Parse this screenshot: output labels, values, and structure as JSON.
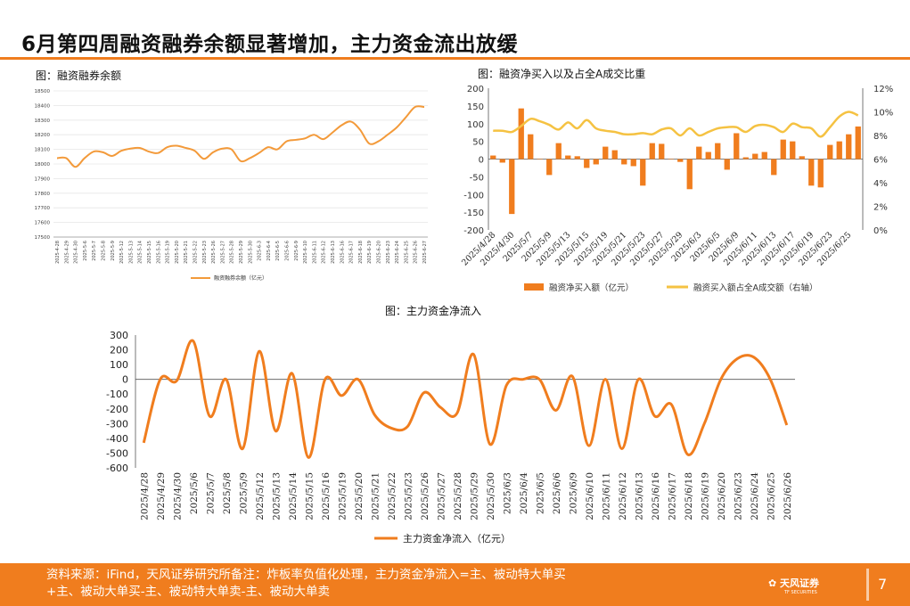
{
  "page": {
    "title": "6月第四周融资融券余额显著增加，主力资金流出放缓",
    "source_note": "资料来源：iFind，天风证券研究所备注：炸板率负值化处理，主力资金净流入=主、被动特大单买+主、被动大单买-主、被动特大单卖-主、被动大单卖",
    "brand": "天风证券",
    "brand_sub": "TF SECURITIES",
    "page_number": "7"
  },
  "chart_data": [
    {
      "id": "margin_balance",
      "caption": "图：融资融券余额",
      "type": "line",
      "x": [
        "2025-4-28",
        "2025-4-29",
        "2025-4-30",
        "2025-5-6",
        "2025-5-7",
        "2025-5-8",
        "2025-5-9",
        "2025-5-12",
        "2025-5-13",
        "2025-5-14",
        "2025-5-15",
        "2025-5-16",
        "2025-5-19",
        "2025-5-20",
        "2025-5-21",
        "2025-5-22",
        "2025-5-23",
        "2025-5-26",
        "2025-5-27",
        "2025-5-28",
        "2025-5-29",
        "2025-5-30",
        "2025-6-3",
        "2025-6-4",
        "2025-6-5",
        "2025-6-6",
        "2025-6-9",
        "2025-6-10",
        "2025-6-11",
        "2025-6-12",
        "2025-6-13",
        "2025-6-16",
        "2025-6-17",
        "2025-6-18",
        "2025-6-19",
        "2025-6-20",
        "2025-6-23",
        "2025-6-24",
        "2025-6-25",
        "2025-6-26",
        "2025-6-27"
      ],
      "series": [
        {
          "name": "融资融券余额（亿元）",
          "values": [
            18040,
            18040,
            17980,
            18040,
            18085,
            18080,
            18055,
            18090,
            18105,
            18110,
            18085,
            18075,
            18115,
            18125,
            18110,
            18090,
            18035,
            18080,
            18105,
            18100,
            18020,
            18040,
            18075,
            18115,
            18100,
            18155,
            18165,
            18175,
            18200,
            18170,
            18215,
            18265,
            18290,
            18235,
            18140,
            18155,
            18200,
            18250,
            18320,
            18390,
            18390
          ]
        }
      ],
      "ylim": [
        17500,
        18500
      ],
      "yticks": [
        17500,
        17600,
        17700,
        17800,
        17900,
        18000,
        18100,
        18200,
        18300,
        18400,
        18500
      ],
      "color": "#f39a3a",
      "legend": "bottom"
    },
    {
      "id": "financing_net_buy",
      "caption": "图：融资净买入以及占全A成交比重",
      "type": "bar+line",
      "x": [
        "2025/4/28",
        "2025/4/29",
        "2025/4/30",
        "2025/5/6",
        "2025/5/7",
        "2025/5/8",
        "2025/5/9",
        "2025/5/12",
        "2025/5/13",
        "2025/5/14",
        "2025/5/15",
        "2025/5/16",
        "2025/5/19",
        "2025/5/20",
        "2025/5/21",
        "2025/5/22",
        "2025/5/23",
        "2025/5/26",
        "2025/5/27",
        "2025/5/28",
        "2025/5/29",
        "2025/5/30",
        "2025/6/3",
        "2025/6/4",
        "2025/6/5",
        "2025/6/6",
        "2025/6/9",
        "2025/6/10",
        "2025/6/11",
        "2025/6/12",
        "2025/6/13",
        "2025/6/16",
        "2025/6/17",
        "2025/6/18",
        "2025/6/19",
        "2025/6/20",
        "2025/6/23",
        "2025/6/24",
        "2025/6/25",
        "2025/6/26"
      ],
      "xticks": [
        "2025/4/28",
        "2025/4/30",
        "2025/5/7",
        "2025/5/9",
        "2025/5/13",
        "2025/5/15",
        "2025/5/19",
        "2025/5/21",
        "2025/5/23",
        "2025/5/27",
        "2025/5/29",
        "2025/6/3",
        "2025/6/5",
        "2025/6/9",
        "2025/6/11",
        "2025/6/13",
        "2025/6/17",
        "2025/6/19",
        "2025/6/23",
        "2025/6/25"
      ],
      "series": [
        {
          "name": "融资净买入额（亿元）",
          "kind": "bar",
          "axis": "left",
          "color": "#f07d1e",
          "values": [
            10,
            -10,
            -155,
            143,
            70,
            0,
            -45,
            45,
            10,
            8,
            -25,
            -15,
            35,
            25,
            -15,
            -20,
            -75,
            45,
            43,
            0,
            -8,
            -85,
            35,
            20,
            45,
            -30,
            73,
            5,
            15,
            20,
            -45,
            55,
            50,
            8,
            -75,
            -80,
            40,
            50,
            70,
            92
          ]
        },
        {
          "name": "融资买入额占全A成交额（右轴）",
          "kind": "line",
          "axis": "right",
          "color": "#f5c242",
          "values": [
            8.4,
            8.4,
            8.3,
            8.8,
            9.4,
            9.2,
            8.9,
            8.5,
            9.1,
            8.6,
            9.3,
            8.6,
            8.4,
            8.3,
            8.1,
            8.1,
            8.2,
            8.1,
            8.5,
            8.6,
            8.0,
            8.6,
            8.0,
            8.3,
            8.6,
            8.7,
            8.7,
            8.3,
            8.8,
            8.9,
            8.7,
            8.3,
            9.0,
            8.7,
            8.6,
            7.9,
            8.7,
            9.6,
            10.0,
            9.7
          ]
        }
      ],
      "ylim_left": [
        -200,
        200
      ],
      "yticks_left": [
        -200,
        -150,
        -100,
        -50,
        0,
        50,
        100,
        150,
        200
      ],
      "ylim_right": [
        0,
        12
      ],
      "yticks_right": [
        "0%",
        "2%",
        "4%",
        "6%",
        "8%",
        "10%",
        "12%"
      ],
      "legend": "bottom"
    },
    {
      "id": "main_fund_flow",
      "caption": "图：主力资金净流入",
      "type": "line",
      "x": [
        "2025/4/28",
        "2025/4/29",
        "2025/4/30",
        "2025/5/6",
        "2025/5/7",
        "2025/5/8",
        "2025/5/9",
        "2025/5/12",
        "2025/5/13",
        "2025/5/14",
        "2025/5/15",
        "2025/5/16",
        "2025/5/19",
        "2025/5/20",
        "2025/5/21",
        "2025/5/22",
        "2025/5/23",
        "2025/5/26",
        "2025/5/27",
        "2025/5/28",
        "2025/5/29",
        "2025/5/30",
        "2025/6/3",
        "2025/6/4",
        "2025/6/5",
        "2025/6/6",
        "2025/6/9",
        "2025/6/10",
        "2025/6/11",
        "2025/6/12",
        "2025/6/13",
        "2025/6/16",
        "2025/6/17",
        "2025/6/18",
        "2025/6/19",
        "2025/6/20",
        "2025/6/23",
        "2025/6/24",
        "2025/6/25",
        "2025/6/26"
      ],
      "series": [
        {
          "name": "主力资金净流入（亿元）",
          "values": [
            -430,
            0,
            -10,
            260,
            -250,
            0,
            -470,
            190,
            -350,
            40,
            -530,
            0,
            -110,
            0,
            -240,
            -330,
            -320,
            -90,
            -190,
            -230,
            170,
            -440,
            -40,
            0,
            0,
            -210,
            20,
            -450,
            0,
            -470,
            0,
            -250,
            -170,
            -510,
            -300,
            0,
            140,
            150,
            0,
            -310
          ]
        }
      ],
      "ylim": [
        -600,
        300
      ],
      "yticks": [
        -600,
        -500,
        -400,
        -300,
        -200,
        -100,
        0,
        100,
        200,
        300
      ],
      "color": "#f07d1e",
      "legend": "bottom"
    }
  ]
}
